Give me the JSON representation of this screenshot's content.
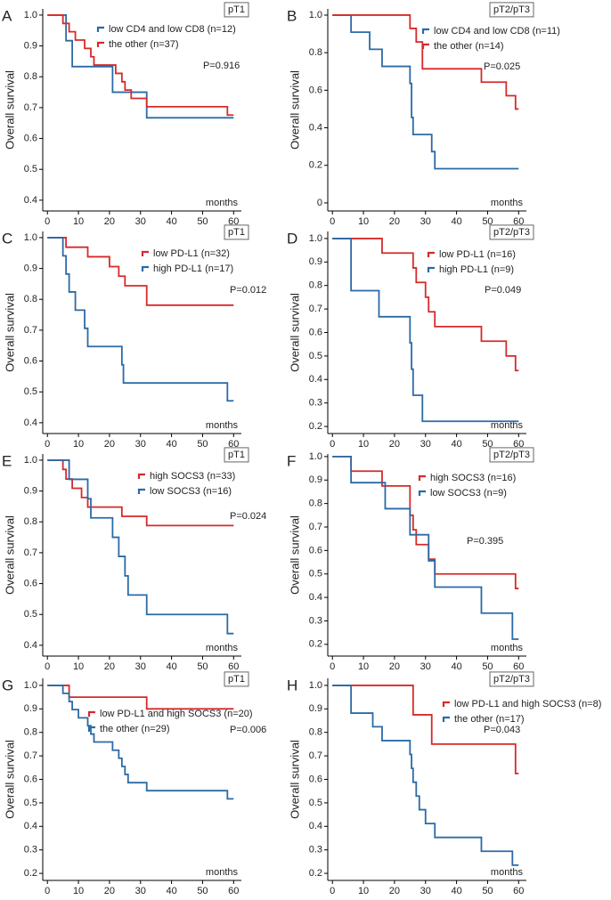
{
  "chart_data": [
    {
      "type": "line",
      "label": "A",
      "stage": "pT1",
      "y_label": "Overall survival",
      "x_label": "months",
      "p_value": "P=0.916",
      "xlim": [
        -1.5,
        62.5
      ],
      "xticks": [
        0,
        10,
        20,
        30,
        40,
        50,
        60
      ],
      "ylim": [
        0.365,
        1.02
      ],
      "yticks": [
        0.4,
        0.5,
        0.6,
        0.7,
        0.8,
        0.9,
        {
          "value": 1,
          "label": "1.0"
        }
      ],
      "series": [
        {
          "name": "low CD4 and low CD8 (n=12)",
          "color": "#2b6aa6",
          "x": [
            0,
            6,
            6,
            8,
            8,
            21,
            21,
            32,
            32,
            60
          ],
          "values": [
            1,
            1,
            0.917,
            0.917,
            0.833,
            0.833,
            0.75,
            0.75,
            0.667,
            0.667
          ]
        },
        {
          "name": "the other (n=37)",
          "color": "#d62a2a",
          "x": [
            0,
            5,
            5,
            7,
            7,
            9,
            9,
            12,
            12,
            14,
            14,
            15,
            15,
            22,
            22,
            24,
            24,
            25,
            25,
            27,
            27,
            32,
            32,
            58,
            58,
            60
          ],
          "values": [
            1,
            1,
            0.973,
            0.973,
            0.946,
            0.946,
            0.919,
            0.919,
            0.892,
            0.892,
            0.865,
            0.865,
            0.838,
            0.838,
            0.811,
            0.811,
            0.784,
            0.784,
            0.757,
            0.757,
            0.73,
            0.73,
            0.703,
            0.703,
            0.676,
            0.676
          ]
        }
      ]
    },
    {
      "type": "line",
      "label": "B",
      "stage": "pT2/pT3",
      "y_label": "Overall survival",
      "x_label": "months",
      "p_value": "P=0.025",
      "xlim": [
        -1.5,
        62.5
      ],
      "xticks": [
        0,
        10,
        20,
        30,
        40,
        50,
        60
      ],
      "ylim": [
        -0.043,
        1.033
      ],
      "yticks": [
        0,
        0.2,
        0.4,
        0.6,
        0.8,
        {
          "value": 1,
          "label": "1.0"
        }
      ],
      "series": [
        {
          "name": "low CD4 and low CD8 (n=11)",
          "color": "#2b6aa6",
          "x": [
            0,
            6,
            6,
            12,
            12,
            16,
            16,
            25,
            25,
            25.5,
            25.5,
            26,
            26,
            32,
            32,
            33,
            33,
            60
          ],
          "values": [
            1,
            1,
            0.909,
            0.909,
            0.818,
            0.818,
            0.727,
            0.727,
            0.636,
            0.636,
            0.455,
            0.455,
            0.364,
            0.364,
            0.273,
            0.273,
            0.182,
            0.182
          ]
        },
        {
          "name": "the other (n=14)",
          "color": "#d62a2a",
          "x": [
            0,
            25,
            25,
            27,
            27,
            29,
            29,
            48,
            48,
            56,
            56,
            59,
            59,
            60
          ],
          "values": [
            1,
            1,
            0.929,
            0.929,
            0.857,
            0.857,
            0.714,
            0.714,
            0.643,
            0.643,
            0.571,
            0.571,
            0.5,
            0.5
          ]
        }
      ]
    },
    {
      "type": "line",
      "label": "C",
      "stage": "pT1",
      "y_label": "Overall survival",
      "x_label": "months",
      "p_value": "P=0.012",
      "xlim": [
        -1.5,
        62.5
      ],
      "xticks": [
        0,
        10,
        20,
        30,
        40,
        50,
        60
      ],
      "ylim": [
        0.365,
        1.02
      ],
      "yticks": [
        0.4,
        0.5,
        0.6,
        0.7,
        0.8,
        0.9,
        {
          "value": 1,
          "label": "1.0"
        }
      ],
      "series": [
        {
          "name": "low PD-L1 (n=32)",
          "color": "#d62a2a",
          "x": [
            0,
            6,
            6,
            13,
            13,
            20,
            20,
            23,
            23,
            25,
            25,
            32,
            32,
            60
          ],
          "values": [
            1,
            1,
            0.969,
            0.969,
            0.938,
            0.938,
            0.906,
            0.906,
            0.875,
            0.875,
            0.844,
            0.844,
            0.781,
            0.781
          ]
        },
        {
          "name": "high PD-L1 (n=17)",
          "color": "#2b6aa6",
          "x": [
            0,
            5,
            5,
            6,
            6,
            7,
            7,
            9,
            9,
            12,
            12,
            13,
            13,
            24,
            24,
            24.5,
            24.5,
            58,
            58,
            60
          ],
          "values": [
            1,
            1,
            0.941,
            0.941,
            0.882,
            0.882,
            0.824,
            0.824,
            0.765,
            0.765,
            0.706,
            0.706,
            0.647,
            0.647,
            0.588,
            0.588,
            0.529,
            0.529,
            0.471,
            0.471
          ]
        }
      ]
    },
    {
      "type": "line",
      "label": "D",
      "stage": "pT2/pT3",
      "y_label": "Overall survival",
      "x_label": "months",
      "p_value": "P=0.049",
      "xlim": [
        -1.5,
        62.5
      ],
      "xticks": [
        0,
        10,
        20,
        30,
        40,
        50,
        60
      ],
      "ylim": [
        0.17,
        1.03
      ],
      "yticks": [
        0.2,
        0.3,
        0.4,
        0.5,
        0.6,
        0.7,
        0.8,
        0.9,
        {
          "value": 1,
          "label": "1.0"
        }
      ],
      "series": [
        {
          "name": "low PD-L1 (n=16)",
          "color": "#d62a2a",
          "x": [
            0,
            16,
            16,
            26,
            26,
            27,
            27,
            30,
            30,
            31,
            31,
            33,
            33,
            48,
            48,
            56,
            56,
            59,
            59,
            60
          ],
          "values": [
            1,
            1,
            0.938,
            0.938,
            0.875,
            0.875,
            0.813,
            0.813,
            0.75,
            0.75,
            0.688,
            0.688,
            0.625,
            0.625,
            0.563,
            0.563,
            0.5,
            0.5,
            0.438,
            0.438
          ]
        },
        {
          "name": "high PD-L1 (n=9)",
          "color": "#2b6aa6",
          "x": [
            0,
            6,
            6,
            15,
            15,
            25,
            25,
            25.5,
            25.5,
            26,
            26,
            29,
            29,
            60
          ],
          "values": [
            1,
            1,
            0.778,
            0.778,
            0.667,
            0.667,
            0.556,
            0.556,
            0.444,
            0.444,
            0.333,
            0.333,
            0.222,
            0.222
          ]
        }
      ]
    },
    {
      "type": "line",
      "label": "E",
      "stage": "pT1",
      "y_label": "Overall survival",
      "x_label": "months",
      "p_value": "P=0.024",
      "xlim": [
        -1.5,
        62.5
      ],
      "xticks": [
        0,
        10,
        20,
        30,
        40,
        50,
        60
      ],
      "ylim": [
        0.365,
        1.02
      ],
      "yticks": [
        0.4,
        0.5,
        0.6,
        0.7,
        0.8,
        0.9,
        {
          "value": 1,
          "label": "1.0"
        }
      ],
      "series": [
        {
          "name": "high SOCS3 (n=33)",
          "color": "#d62a2a",
          "x": [
            0,
            5,
            5,
            6,
            6,
            8,
            8,
            11,
            11,
            13,
            13,
            24,
            24,
            32,
            32,
            60
          ],
          "values": [
            1,
            1,
            0.97,
            0.97,
            0.939,
            0.939,
            0.909,
            0.909,
            0.879,
            0.879,
            0.848,
            0.848,
            0.818,
            0.818,
            0.788,
            0.788
          ]
        },
        {
          "name": "low SOCS3 (n=16)",
          "color": "#2b6aa6",
          "x": [
            0,
            7,
            7,
            13,
            13,
            14,
            14,
            21,
            21,
            23,
            23,
            25,
            25,
            26,
            26,
            32,
            32,
            58,
            58,
            60
          ],
          "values": [
            1,
            1,
            0.938,
            0.938,
            0.875,
            0.875,
            0.813,
            0.813,
            0.75,
            0.75,
            0.688,
            0.688,
            0.625,
            0.625,
            0.563,
            0.563,
            0.5,
            0.5,
            0.438,
            0.438
          ]
        }
      ]
    },
    {
      "type": "line",
      "label": "F",
      "stage": "pT2/pT3",
      "y_label": "Overall survival",
      "x_label": "months",
      "p_value": "P=0.395",
      "xlim": [
        -1.5,
        62.5
      ],
      "xticks": [
        0,
        10,
        20,
        30,
        40,
        50,
        60
      ],
      "ylim": [
        0.15,
        1.011
      ],
      "yticks": [
        0.2,
        0.3,
        0.4,
        0.5,
        0.6,
        0.7,
        0.8,
        0.9,
        {
          "value": 1,
          "label": "1.0"
        }
      ],
      "series": [
        {
          "name": "high SOCS3 (n=16)",
          "color": "#d62a2a",
          "x": [
            0,
            6,
            6,
            16,
            16,
            25,
            25,
            26,
            26,
            27,
            27,
            31,
            31,
            33,
            33,
            59,
            59,
            60
          ],
          "values": [
            1,
            1,
            0.938,
            0.938,
            0.875,
            0.875,
            0.75,
            0.75,
            0.688,
            0.688,
            0.625,
            0.625,
            0.563,
            0.563,
            0.5,
            0.5,
            0.438,
            0.438
          ]
        },
        {
          "name": "low SOCS3 (n=9)",
          "color": "#2b6aa6",
          "x": [
            0,
            6,
            6,
            17,
            17,
            25,
            25,
            31,
            31,
            33,
            33,
            48,
            48,
            58,
            58,
            60
          ],
          "values": [
            1,
            1,
            0.889,
            0.889,
            0.778,
            0.778,
            0.667,
            0.667,
            0.556,
            0.556,
            0.444,
            0.444,
            0.333,
            0.333,
            0.222,
            0.222
          ]
        }
      ]
    },
    {
      "type": "line",
      "label": "G",
      "stage": "pT1",
      "y_label": "Overall survival",
      "x_label": "months",
      "p_value": "P=0.006",
      "xlim": [
        -1.5,
        62.5
      ],
      "xticks": [
        0,
        10,
        20,
        30,
        40,
        50,
        60
      ],
      "ylim": [
        0.17,
        1.03
      ],
      "yticks": [
        0.2,
        0.3,
        0.4,
        0.5,
        0.6,
        0.7,
        0.8,
        0.9,
        {
          "value": 1,
          "label": "1.0"
        }
      ],
      "series": [
        {
          "name": "low PD-L1 and high SOCS3 (n=20)",
          "color": "#d62a2a",
          "x": [
            0,
            7,
            7,
            32,
            32,
            60
          ],
          "values": [
            1,
            1,
            0.95,
            0.95,
            0.9,
            0.9
          ]
        },
        {
          "name": "the other (n=29)",
          "color": "#2b6aa6",
          "x": [
            0,
            5,
            5,
            7,
            7,
            8,
            8,
            10,
            10,
            13,
            13,
            14,
            14,
            15,
            15,
            21,
            21,
            23,
            23,
            24,
            24,
            25,
            25,
            26,
            26,
            32,
            32,
            58,
            58,
            60
          ],
          "values": [
            1,
            1,
            0.966,
            0.966,
            0.931,
            0.931,
            0.897,
            0.897,
            0.862,
            0.862,
            0.828,
            0.828,
            0.793,
            0.793,
            0.759,
            0.759,
            0.724,
            0.724,
            0.69,
            0.69,
            0.655,
            0.655,
            0.621,
            0.621,
            0.586,
            0.586,
            0.552,
            0.552,
            0.517,
            0.517
          ]
        }
      ]
    },
    {
      "type": "line",
      "label": "H",
      "stage": "pT2/pT3",
      "y_label": "Overall survival",
      "x_label": "months",
      "p_value": "P=0.043",
      "xlim": [
        -1.5,
        62.5
      ],
      "xticks": [
        0,
        10,
        20,
        30,
        40,
        50,
        60
      ],
      "ylim": [
        0.17,
        1.03
      ],
      "yticks": [
        0.2,
        0.3,
        0.4,
        0.5,
        0.6,
        0.7,
        0.8,
        0.9,
        {
          "value": 1,
          "label": "1.0"
        }
      ],
      "series": [
        {
          "name": "low PD-L1 and high SOCS3 (n=8)",
          "color": "#d62a2a",
          "x": [
            0,
            26,
            26,
            32,
            32,
            59,
            59,
            60
          ],
          "values": [
            1,
            1,
            0.875,
            0.875,
            0.75,
            0.75,
            0.625,
            0.625
          ]
        },
        {
          "name": "the other (n=17)",
          "color": "#2b6aa6",
          "x": [
            0,
            6,
            6,
            13,
            13,
            16,
            16,
            25,
            25,
            25.5,
            25.5,
            26,
            26,
            27,
            27,
            28,
            28,
            30,
            30,
            33,
            33,
            48,
            48,
            58,
            58,
            60
          ],
          "values": [
            1,
            1,
            0.882,
            0.882,
            0.824,
            0.824,
            0.765,
            0.765,
            0.706,
            0.706,
            0.647,
            0.647,
            0.588,
            0.588,
            0.529,
            0.529,
            0.471,
            0.471,
            0.412,
            0.412,
            0.353,
            0.353,
            0.294,
            0.294,
            0.235,
            0.235
          ]
        }
      ]
    }
  ]
}
